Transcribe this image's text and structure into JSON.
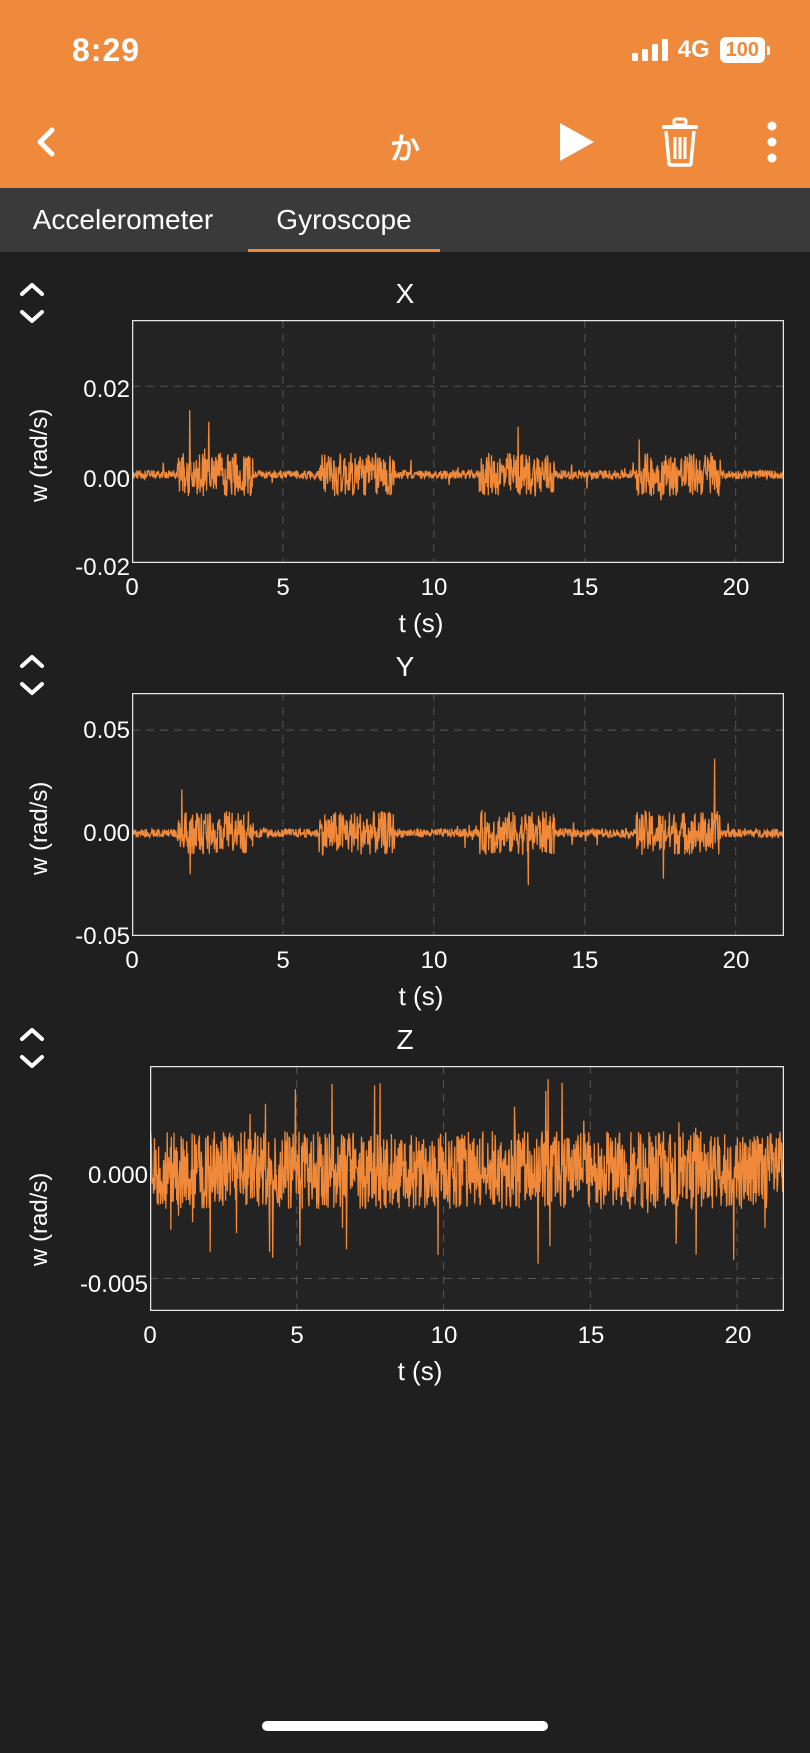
{
  "status": {
    "time": "8:29",
    "network": "4G",
    "battery": "100"
  },
  "nav": {
    "title": "か"
  },
  "tabs": [
    {
      "label": "Accelerometer",
      "active": false
    },
    {
      "label": "Gyroscope",
      "active": true
    }
  ],
  "colors": {
    "accent": "#ef8a3c",
    "plot_bg": "#232323",
    "grid": "#555555",
    "line": "#f08a3a"
  },
  "chart_data": [
    {
      "type": "line",
      "title": "X",
      "xlabel": "t (s)",
      "ylabel": "w (rad/s)",
      "xlim": [
        0,
        21.6
      ],
      "ylim": [
        -0.02,
        0.035
      ],
      "xticks": [
        "0",
        "5",
        "10",
        "15",
        "20"
      ],
      "yticks": [
        "0.02",
        "0.00",
        "-0.02"
      ],
      "series": [
        {
          "values_description_note_free": true
        }
      ]
    },
    {
      "type": "line",
      "title": "Y",
      "xlabel": "t (s)",
      "ylabel": "w (rad/s)",
      "xlim": [
        0,
        21.6
      ],
      "ylim": [
        -0.05,
        0.068
      ],
      "xticks": [
        "0",
        "5",
        "10",
        "15",
        "20"
      ],
      "yticks": [
        "0.05",
        "0.00",
        "-0.05"
      ]
    },
    {
      "type": "line",
      "title": "Z",
      "xlabel": "t (s)",
      "ylabel": "w (rad/s)",
      "xlim": [
        0,
        21.6
      ],
      "ylim": [
        -0.0065,
        0.0048
      ],
      "xticks": [
        "0",
        "5",
        "10",
        "15",
        "20"
      ],
      "yticks": [
        "0.000",
        "-0.005"
      ]
    }
  ]
}
